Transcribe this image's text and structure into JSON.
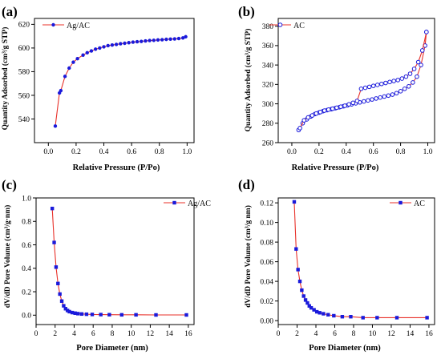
{
  "colors": {
    "line": "#e8312a",
    "marker": "#1a1adb",
    "axis": "#000000"
  },
  "chart_data": [
    {
      "type": "line",
      "panel_label": "(a)",
      "xlabel": "Relative Pressure (P/Po)",
      "ylabel": "Quantity Adsorbed (cm³/g STP)",
      "xlim": [
        -0.1,
        1.05
      ],
      "ylim": [
        520,
        625
      ],
      "xticks": [
        0.0,
        0.2,
        0.4,
        0.6,
        0.8,
        1.0
      ],
      "xtick_labels": [
        "0.0",
        "0.2",
        "0.4",
        "0.6",
        "0.8",
        "1.0"
      ],
      "yticks": [
        540,
        560,
        580,
        600,
        620
      ],
      "ytick_labels": [
        "540",
        "560",
        "580",
        "600",
        "620"
      ],
      "legend_position": "top-left",
      "marker": "circle",
      "series": [
        {
          "name": "Ag/AC",
          "x": [
            0.05,
            0.08,
            0.09,
            0.12,
            0.15,
            0.18,
            0.21,
            0.25,
            0.28,
            0.31,
            0.34,
            0.37,
            0.4,
            0.43,
            0.46,
            0.49,
            0.52,
            0.55,
            0.58,
            0.61,
            0.64,
            0.67,
            0.7,
            0.73,
            0.76,
            0.79,
            0.82,
            0.85,
            0.88,
            0.91,
            0.94,
            0.97,
            0.99
          ],
          "y": [
            534,
            562,
            564,
            576,
            583,
            588,
            591,
            594,
            596,
            597.5,
            599,
            600,
            601,
            602,
            602.5,
            603,
            603.6,
            604,
            604.5,
            605,
            605.3,
            605.6,
            606,
            606.3,
            606.5,
            606.8,
            607,
            607.3,
            607.5,
            607.7,
            608,
            608.5,
            609.5
          ]
        }
      ]
    },
    {
      "type": "line",
      "panel_label": "(b)",
      "xlabel": "Relative Pressure (P/Po)",
      "ylabel": "Quantity Adsorbed (cm³/g STP)",
      "xlim": [
        -0.1,
        1.05
      ],
      "ylim": [
        260,
        388
      ],
      "xticks": [
        0.0,
        0.2,
        0.4,
        0.6,
        0.8,
        1.0
      ],
      "xtick_labels": [
        "0.0",
        "0.2",
        "0.4",
        "0.6",
        "0.8",
        "1.0"
      ],
      "yticks": [
        260,
        280,
        300,
        320,
        340,
        360,
        380
      ],
      "ytick_labels": [
        "260",
        "280",
        "300",
        "320",
        "340",
        "360",
        "380"
      ],
      "legend_position": "top-left",
      "marker": "open-circle",
      "series": [
        {
          "name": "AC",
          "x": [
            0.05,
            0.08,
            0.11,
            0.14,
            0.17,
            0.2,
            0.23,
            0.26,
            0.29,
            0.32,
            0.35,
            0.38,
            0.41,
            0.44,
            0.47,
            0.5,
            0.53,
            0.56,
            0.59,
            0.62,
            0.65,
            0.68,
            0.71,
            0.74,
            0.77,
            0.8,
            0.83,
            0.86,
            0.89,
            0.92,
            0.95,
            0.98,
            0.99
          ],
          "y": [
            273,
            280,
            284,
            287,
            289.5,
            291,
            292.5,
            293.5,
            294.5,
            295.5,
            296.5,
            297.5,
            298.5,
            299.5,
            300.5,
            301.5,
            302.5,
            303.5,
            304.5,
            305.5,
            306.5,
            307.5,
            308.5,
            309.5,
            311,
            313,
            315.5,
            318,
            322,
            328,
            340,
            360,
            374
          ]
        },
        {
          "name": "",
          "x": [
            0.99,
            0.96,
            0.93,
            0.9,
            0.87,
            0.84,
            0.81,
            0.78,
            0.75,
            0.72,
            0.69,
            0.66,
            0.63,
            0.6,
            0.57,
            0.54,
            0.51,
            0.48,
            0.45,
            0.42,
            0.39,
            0.36,
            0.33,
            0.3,
            0.27,
            0.24,
            0.21,
            0.18,
            0.15,
            0.12,
            0.09,
            0.06
          ],
          "y": [
            374,
            355,
            343,
            336,
            331,
            328,
            326,
            324.5,
            323.5,
            322.5,
            321.5,
            320.5,
            319.5,
            318.5,
            317.5,
            316.5,
            315.5,
            303,
            301,
            299.5,
            298,
            297,
            296,
            295,
            294,
            293,
            291.5,
            290,
            288,
            286,
            283,
            275
          ]
        }
      ]
    },
    {
      "type": "line",
      "panel_label": "(c)",
      "xlabel": "Pore Diameter (nm)",
      "ylabel": "dV/dD Pore Volume (cm³/g·nm)",
      "xlim": [
        0,
        16.6
      ],
      "ylim": [
        -0.08,
        1.0
      ],
      "xticks": [
        0,
        2,
        4,
        6,
        8,
        10,
        12,
        14,
        16
      ],
      "xtick_labels": [
        "0",
        "2",
        "4",
        "6",
        "8",
        "10",
        "12",
        "14",
        "16"
      ],
      "yticks": [
        0.0,
        0.2,
        0.4,
        0.6,
        0.8,
        1.0
      ],
      "ytick_labels": [
        "0.0",
        "0.2",
        "0.4",
        "0.6",
        "0.8",
        "1.0"
      ],
      "legend_position": "top-right",
      "marker": "square",
      "series": [
        {
          "name": "Ag/AC",
          "x": [
            1.7,
            1.9,
            2.1,
            2.3,
            2.5,
            2.7,
            2.9,
            3.1,
            3.3,
            3.5,
            3.8,
            4.1,
            4.4,
            4.8,
            5.3,
            5.9,
            6.8,
            7.7,
            9.0,
            10.5,
            12.6,
            15.8
          ],
          "y": [
            0.91,
            0.62,
            0.41,
            0.27,
            0.18,
            0.12,
            0.08,
            0.055,
            0.04,
            0.03,
            0.022,
            0.017,
            0.013,
            0.01,
            0.008,
            0.006,
            0.005,
            0.004,
            0.003,
            0.003,
            0.002,
            0.002
          ]
        }
      ]
    },
    {
      "type": "line",
      "panel_label": "(d)",
      "xlabel": "Pore Diameter (nm)",
      "ylabel": "dV/dD Pore Volume (cm³/g nm)",
      "xlim": [
        0,
        16.6
      ],
      "ylim": [
        -0.004,
        0.125
      ],
      "xticks": [
        0,
        2,
        4,
        6,
        8,
        10,
        12,
        14,
        16
      ],
      "xtick_labels": [
        "0",
        "2",
        "4",
        "6",
        "8",
        "10",
        "12",
        "14",
        "16"
      ],
      "yticks": [
        0.0,
        0.02,
        0.04,
        0.06,
        0.08,
        0.1,
        0.12
      ],
      "ytick_labels": [
        "0.00",
        "0.02",
        "0.04",
        "0.06",
        "0.08",
        "0.10",
        "0.12"
      ],
      "legend_position": "top-right",
      "marker": "square",
      "series": [
        {
          "name": "AC",
          "x": [
            1.7,
            1.9,
            2.1,
            2.3,
            2.5,
            2.7,
            2.9,
            3.1,
            3.3,
            3.5,
            3.8,
            4.1,
            4.4,
            4.8,
            5.3,
            5.9,
            6.8,
            7.7,
            9.0,
            10.5,
            12.6,
            15.8
          ],
          "y": [
            0.121,
            0.073,
            0.052,
            0.04,
            0.031,
            0.025,
            0.021,
            0.018,
            0.015,
            0.013,
            0.011,
            0.009,
            0.008,
            0.007,
            0.006,
            0.005,
            0.004,
            0.004,
            0.003,
            0.003,
            0.003,
            0.003
          ]
        }
      ]
    }
  ]
}
